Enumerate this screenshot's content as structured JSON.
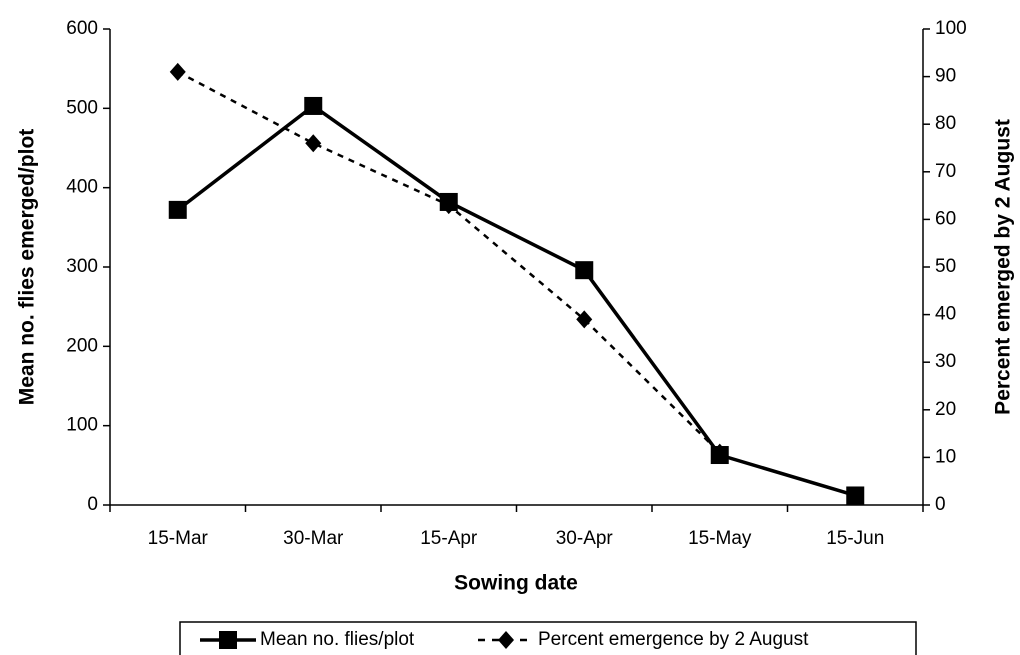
{
  "chart_data": {
    "type": "line",
    "x_label": "Sowing date",
    "y_label": "Mean no. flies emerged/plot",
    "y2_label": "Percent emerged by 2 August",
    "categories": [
      "15-Mar",
      "30-Mar",
      "15-Apr",
      "30-Apr",
      "15-May",
      "15-Jun"
    ],
    "series": [
      {
        "name": "Mean no. flies/plot",
        "color": "#000000",
        "marker": "square",
        "dash": false,
        "values": [
          372,
          503,
          382,
          296,
          63,
          12
        ]
      },
      {
        "name": "Percent emergence by 2 August",
        "color": "#000000",
        "marker": "diamond",
        "dash": true,
        "axis": "y2",
        "values": [
          91,
          76,
          63,
          39,
          11,
          null
        ]
      }
    ],
    "ylim": [
      0,
      600
    ],
    "yticks": [
      0,
      100,
      200,
      300,
      400,
      500,
      600
    ],
    "y2lim": [
      0,
      100
    ],
    "y2ticks": [
      0,
      10,
      20,
      30,
      40,
      50,
      60,
      70,
      80,
      90,
      100
    ],
    "legend": "bottom"
  }
}
